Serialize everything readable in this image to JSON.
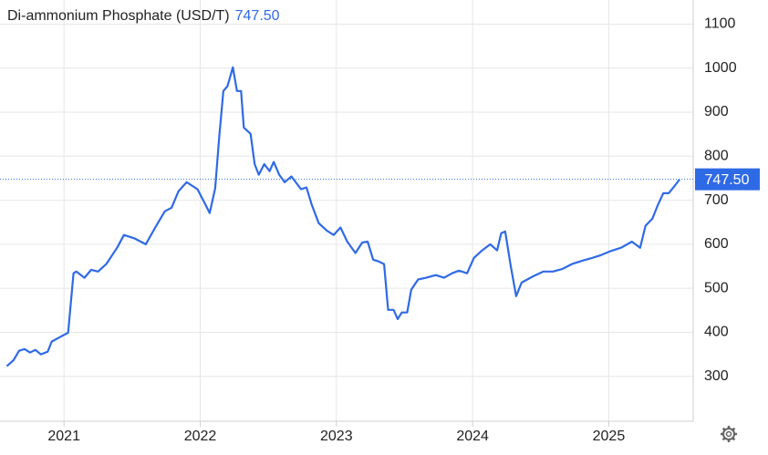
{
  "chart_data": {
    "type": "line",
    "title": "Di-ammonium Phosphate (USD/T)",
    "last_price": {
      "value": 747.5,
      "label": "747.50"
    },
    "series": [
      {
        "name": "Di-ammonium Phosphate",
        "color": "#2f6ae6",
        "x": [
          2020.58,
          2020.63,
          2020.67,
          2020.71,
          2020.75,
          2020.79,
          2020.83,
          2020.88,
          2020.91,
          2020.97,
          2021.03,
          2021.07,
          2021.09,
          2021.15,
          2021.2,
          2021.25,
          2021.31,
          2021.39,
          2021.44,
          2021.52,
          2021.6,
          2021.67,
          2021.74,
          2021.79,
          2021.84,
          2021.9,
          2021.98,
          2022.04,
          2022.07,
          2022.11,
          2022.14,
          2022.17,
          2022.2,
          2022.24,
          2022.27,
          2022.3,
          2022.32,
          2022.37,
          2022.4,
          2022.43,
          2022.47,
          2022.51,
          2022.54,
          2022.58,
          2022.62,
          2022.67,
          2022.74,
          2022.78,
          2022.82,
          2022.87,
          2022.93,
          2022.98,
          2023.03,
          2023.08,
          2023.14,
          2023.19,
          2023.23,
          2023.27,
          2023.31,
          2023.35,
          2023.38,
          2023.42,
          2023.45,
          2023.48,
          2023.52,
          2023.55,
          2023.6,
          2023.66,
          2023.73,
          2023.79,
          2023.85,
          2023.9,
          2023.96,
          2024.01,
          2024.07,
          2024.13,
          2024.18,
          2024.21,
          2024.24,
          2024.28,
          2024.32,
          2024.36,
          2024.45,
          2024.52,
          2024.59,
          2024.66,
          2024.73,
          2024.81,
          2024.88,
          2024.94,
          2025.01,
          2025.09,
          2025.17,
          2025.23,
          2025.27,
          2025.32,
          2025.36,
          2025.4,
          2025.44,
          2025.48,
          2025.52
        ],
        "values": [
          323,
          337,
          358,
          362,
          354,
          360,
          350,
          356,
          379,
          389,
          399,
          534,
          538,
          524,
          542,
          538,
          555,
          592,
          621,
          613,
          600,
          638,
          675,
          683,
          720,
          741,
          725,
          689,
          671,
          727,
          845,
          948,
          959,
          1002,
          948,
          948,
          865,
          851,
          782,
          758,
          782,
          766,
          787,
          758,
          741,
          754,
          725,
          729,
          689,
          648,
          631,
          621,
          638,
          606,
          580,
          604,
          606,
          565,
          561,
          555,
          451,
          451,
          430,
          445,
          445,
          497,
          520,
          524,
          530,
          524,
          534,
          540,
          534,
          569,
          586,
          600,
          586,
          625,
          629,
          551,
          482,
          513,
          528,
          538,
          538,
          544,
          555,
          563,
          569,
          575,
          584,
          592,
          606,
          592,
          642,
          658,
          689,
          716,
          716,
          731,
          747.5
        ]
      }
    ],
    "xlim": [
      2020.53,
      2025.62
    ],
    "xticks": [
      2021,
      2022,
      2023,
      2024,
      2025
    ],
    "ylim": [
      200,
      1150
    ],
    "yticks": [
      300,
      400,
      500,
      600,
      700,
      800,
      900,
      1000,
      1100
    ],
    "grid": true
  }
}
